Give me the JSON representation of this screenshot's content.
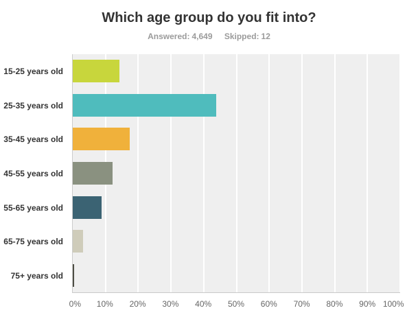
{
  "subtitle": {
    "answered_label": "Answered:",
    "answered_value": "4,649",
    "skipped_label": "Skipped:",
    "skipped_value": "12"
  },
  "chart_data": {
    "type": "bar",
    "orientation": "horizontal",
    "title": "Which age group do you fit into?",
    "categories": [
      "15-25 years old",
      "25-35 years old",
      "35-45 years old",
      "45-55 years old",
      "55-65 years old",
      "65-75 years old",
      "75+ years old"
    ],
    "values": [
      14.2,
      43.9,
      17.3,
      12.1,
      8.9,
      3.1,
      0.5
    ],
    "unit": "%",
    "bar_colors": [
      "#c8d63c",
      "#4fbcbd",
      "#f0b13b",
      "#8a9180",
      "#3b6373",
      "#cfccba",
      "#4d4d44"
    ],
    "x_ticks": [
      "0%",
      "10%",
      "20%",
      "30%",
      "40%",
      "50%",
      "60%",
      "70%",
      "80%",
      "90%",
      "100%"
    ],
    "xlim": [
      0,
      100
    ],
    "xlabel": "",
    "ylabel": "",
    "grid": true,
    "gridline_color": "#ffffff",
    "plot_bg": "#efefef",
    "legend": "none"
  }
}
